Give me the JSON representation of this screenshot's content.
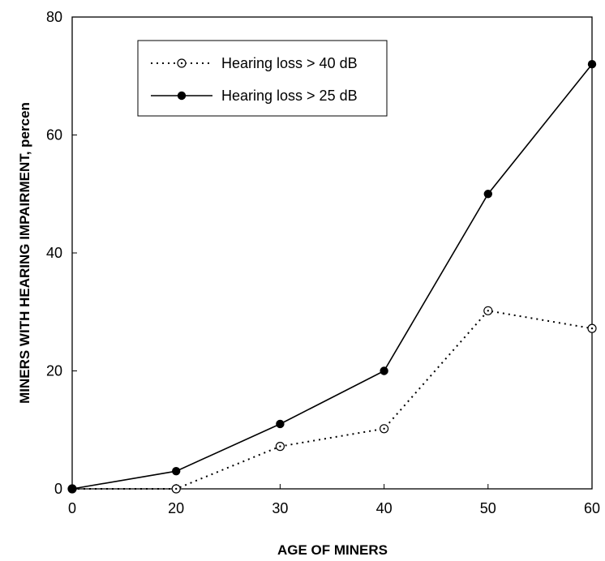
{
  "chart_data": {
    "type": "line",
    "title": "",
    "xlabel": "AGE OF MINERS",
    "ylabel": "MINERS WITH HEARING IMPAIRMENT, percen",
    "categories": [
      "0",
      "20",
      "30",
      "40",
      "50",
      "60"
    ],
    "xlim": [
      0,
      60
    ],
    "ylim": [
      0,
      80
    ],
    "y_ticks": [
      0,
      20,
      40,
      60,
      80
    ],
    "grid": false,
    "legend_position": "top-left",
    "series": [
      {
        "name": "Hearing loss > 40 dB",
        "marker": "open-circle-dot",
        "line_style": "dotted",
        "color": "#000000",
        "values": [
          0,
          0,
          7.2,
          10.2,
          30.2,
          27.2
        ]
      },
      {
        "name": "Hearing loss > 25 dB",
        "marker": "filled-circle",
        "line_style": "solid",
        "color": "#000000",
        "values": [
          0,
          3,
          11,
          20,
          50,
          72
        ]
      }
    ]
  }
}
